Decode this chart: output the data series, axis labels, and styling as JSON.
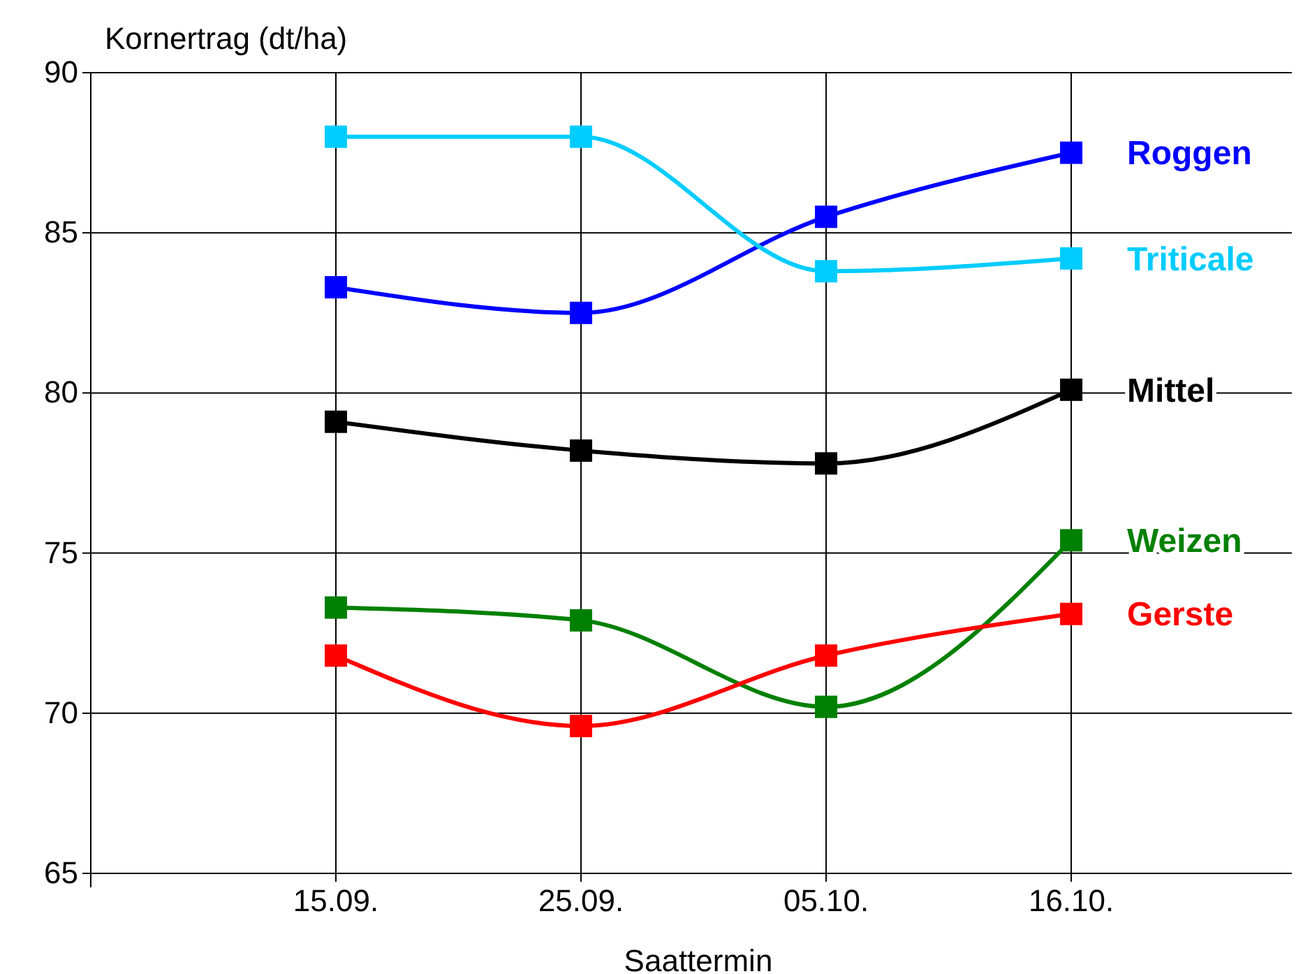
{
  "chart_data": {
    "type": "line",
    "ylabel": "Kornertrag (dt/ha)",
    "xlabel": "Saattermin",
    "categories": [
      "15.09.",
      "25.09.",
      "05.10.",
      "16.10."
    ],
    "ylim": [
      65,
      90
    ],
    "yticks": [
      65,
      70,
      75,
      80,
      85,
      90
    ],
    "grid": true,
    "marker": "square",
    "line_style": "solid",
    "series": [
      {
        "name": "Roggen",
        "color": "#0000ff",
        "values": [
          83.3,
          82.5,
          85.5,
          87.5
        ]
      },
      {
        "name": "Triticale",
        "color": "#00ccff",
        "values": [
          88.0,
          88.0,
          83.8,
          84.2
        ]
      },
      {
        "name": "Mittel",
        "color": "#000000",
        "values": [
          79.1,
          78.2,
          77.8,
          80.1
        ]
      },
      {
        "name": "Weizen",
        "color": "#008000",
        "values": [
          73.3,
          72.9,
          70.2,
          75.4
        ]
      },
      {
        "name": "Gerste",
        "color": "#ff0000",
        "values": [
          71.8,
          69.6,
          71.8,
          73.1
        ]
      }
    ]
  }
}
